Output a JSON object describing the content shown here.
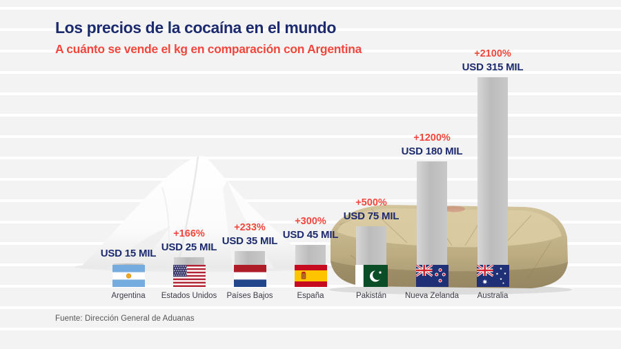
{
  "header": {
    "title": "Los precios de la cocaína en el mundo",
    "subtitle": "A cuánto se vende el kg en comparación con Argentina"
  },
  "source": "Fuente: Dirección General de Aduanas",
  "illustrations": [
    "cocaine-powder-pile",
    "cocaine-brick-package"
  ],
  "colors": {
    "navy": "#1c2a6e",
    "red": "#f0463c",
    "bar_gray": "#c2c2c2",
    "stripe_gray": "#f3f3f4",
    "country_label": "#3b3b46",
    "source_text": "#555555",
    "brick_tan": "#c3b287"
  },
  "chart_data": {
    "type": "bar",
    "title": "Los precios de la cocaína en el mundo",
    "subtitle": "A cuánto se vende el kg en comparación con Argentina",
    "unit": "USD MIL",
    "comparison_base": "Argentina",
    "legend_position": "none",
    "grid": "horizontal-stripes",
    "categories": [
      "Argentina",
      "Estados Unidos",
      "Países Bajos",
      "España",
      "Pakistán",
      "Nueva Zelanda",
      "Australia"
    ],
    "values": [
      15,
      25,
      35,
      45,
      75,
      180,
      315
    ],
    "countries": [
      {
        "id": "argentina",
        "name": "Argentina",
        "flag": "ar",
        "value": 15,
        "price_label": "USD 15 MIL",
        "pct_label": ""
      },
      {
        "id": "estados-unidos",
        "name": "Estados Unidos",
        "flag": "us",
        "value": 25,
        "price_label": "USD 25 MIL",
        "pct_label": "+166%"
      },
      {
        "id": "paises-bajos",
        "name": "Países Bajos",
        "flag": "nl",
        "value": 35,
        "price_label": "USD 35 MIL",
        "pct_label": "+233%"
      },
      {
        "id": "espana",
        "name": "España",
        "flag": "es",
        "value": 45,
        "price_label": "USD 45 MIL",
        "pct_label": "+300%"
      },
      {
        "id": "pakistan",
        "name": "Pakistán",
        "flag": "pk",
        "value": 75,
        "price_label": "USD 75 MIL",
        "pct_label": "+500%"
      },
      {
        "id": "nueva-zelanda",
        "name": "Nueva Zelanda",
        "flag": "nz",
        "value": 180,
        "price_label": "USD 180 MIL",
        "pct_label": "+1200%"
      },
      {
        "id": "australia",
        "name": "Australia",
        "flag": "au",
        "value": 315,
        "price_label": "USD 315 MIL",
        "pct_label": "+2100%"
      }
    ]
  }
}
